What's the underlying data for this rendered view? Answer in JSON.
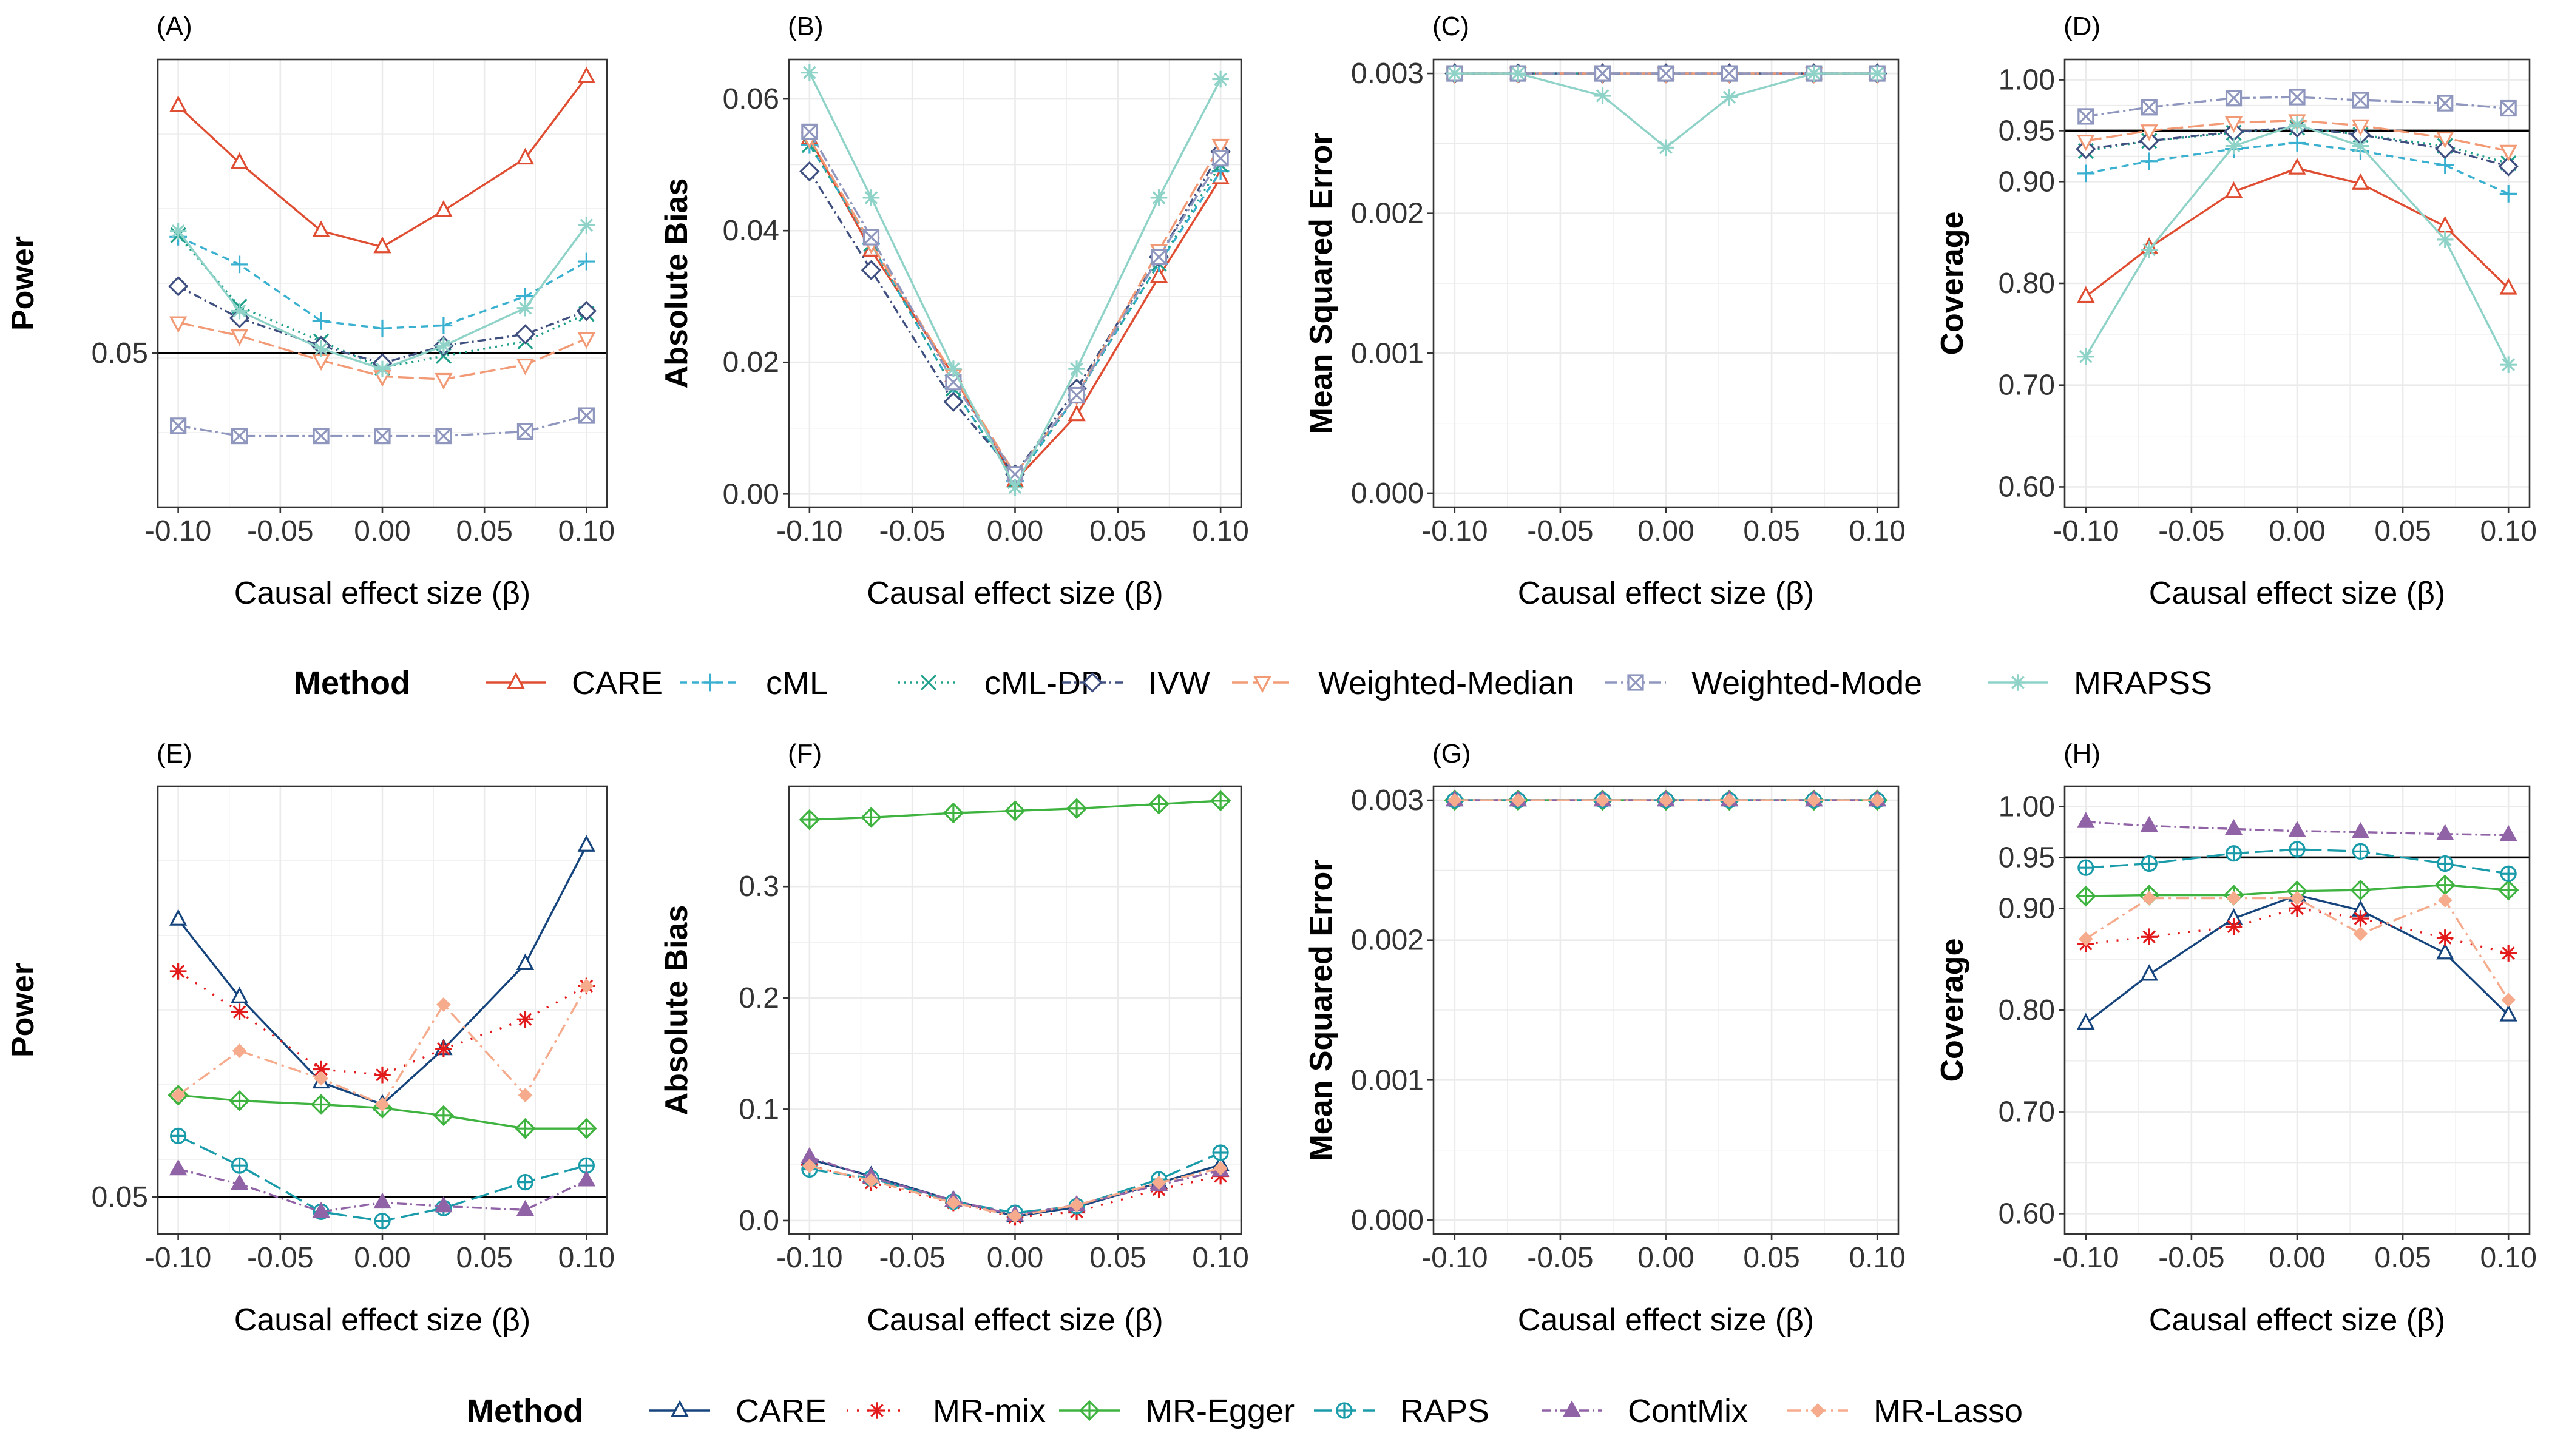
{
  "colors": {
    "CARE_top": "#DF4E32",
    "cML": "#3AB0D0",
    "cML-DP": "#1FA08A",
    "IVW": "#3F4F7F",
    "Weighted-Median": "#F29A75",
    "Weighted-Mode": "#8F97BE",
    "MRAPSS": "#8FD3C8",
    "CARE_bottom": "#16457E",
    "MR-mix": "#E31A1C",
    "MR-Egger": "#3FB33F",
    "RAPS": "#1A9BAA",
    "ContMix": "#9062A6",
    "MR-Lasso": "#F5AB8C"
  },
  "legends": [
    {
      "title": "Method",
      "entries": [
        {
          "label": "CARE",
          "key": "CARE_top",
          "shape": "triangle",
          "dash": ""
        },
        {
          "label": "cML",
          "key": "cML",
          "shape": "plus",
          "dash": "12,8"
        },
        {
          "label": "cML-DP",
          "key": "cML-DP",
          "shape": "cross",
          "dash": "3,7"
        },
        {
          "label": "IVW",
          "key": "IVW",
          "shape": "diamond",
          "dash": "14,6,3,6"
        },
        {
          "label": "Weighted-Median",
          "key": "Weighted-Median",
          "shape": "triangle-down",
          "dash": "26,8"
        },
        {
          "label": "Weighted-Mode",
          "key": "Weighted-Mode",
          "shape": "square-x",
          "dash": "20,6,4,6"
        },
        {
          "label": "MRAPSS",
          "key": "MRAPSS",
          "shape": "asterisk",
          "dash": ""
        }
      ]
    },
    {
      "title": "Method",
      "entries": [
        {
          "label": "CARE",
          "key": "CARE_bottom",
          "shape": "triangle",
          "dash": ""
        },
        {
          "label": "MR-mix",
          "key": "MR-mix",
          "shape": "asterisk",
          "dash": "3,14"
        },
        {
          "label": "MR-Egger",
          "key": "MR-Egger",
          "shape": "diamond-plus",
          "dash": ""
        },
        {
          "label": "RAPS",
          "key": "RAPS",
          "shape": "circle-plus",
          "dash": "30,10"
        },
        {
          "label": "ContMix",
          "key": "ContMix",
          "shape": "triangle-filled",
          "dash": "16,6,3,6"
        },
        {
          "label": "MR-Lasso",
          "key": "MR-Lasso",
          "shape": "diamond-filled",
          "dash": "22,8,4,8"
        }
      ]
    }
  ],
  "chart_data": [
    {
      "tag": "(A)",
      "type": "line",
      "ylabel": "Power",
      "xlabel": "Causal effect size (β)",
      "x": [
        -0.1,
        -0.07,
        -0.03,
        0,
        0.03,
        0.07,
        0.1
      ],
      "xlim": [
        -0.11,
        0.11
      ],
      "xticks": [
        "-0.10",
        "-0.05",
        "0.00",
        "0.05",
        "0.10"
      ],
      "ylim": [
        -0.056,
        0.252
      ],
      "yticks": [
        {
          "v": 0.05,
          "label": "0.05"
        }
      ],
      "hline": 0.05,
      "series": [
        {
          "name": "CARE",
          "values": [
            0.22,
            0.181,
            0.134,
            0.123,
            0.148,
            0.184,
            0.24
          ]
        },
        {
          "name": "cML",
          "values": [
            0.13,
            0.111,
            0.072,
            0.067,
            0.069,
            0.089,
            0.113
          ]
        },
        {
          "name": "cML-DP",
          "values": [
            0.131,
            0.082,
            0.058,
            0.04,
            0.048,
            0.058,
            0.077
          ]
        },
        {
          "name": "IVW",
          "values": [
            0.096,
            0.074,
            0.055,
            0.043,
            0.055,
            0.063,
            0.079
          ]
        },
        {
          "name": "Weighted-Median",
          "values": [
            0.071,
            0.062,
            0.045,
            0.034,
            0.032,
            0.042,
            0.06
          ]
        },
        {
          "name": "Weighted-Mode",
          "values": [
            0.0,
            -0.007,
            -0.007,
            -0.007,
            -0.007,
            -0.004,
            0.007
          ]
        },
        {
          "name": "MRAPSS",
          "values": [
            0.134,
            0.079,
            0.053,
            0.039,
            0.055,
            0.081,
            0.138
          ]
        }
      ]
    },
    {
      "tag": "(B)",
      "type": "line",
      "ylabel": "Absolute Bias",
      "xlabel": "Causal effect size (β)",
      "x": [
        -0.1,
        -0.07,
        -0.03,
        0,
        0.03,
        0.07,
        0.1
      ],
      "xlim": [
        -0.11,
        0.11
      ],
      "xticks": [
        "-0.10",
        "-0.05",
        "0.00",
        "0.05",
        "0.10"
      ],
      "ylim": [
        -0.002,
        0.066
      ],
      "yticks": [
        {
          "v": 0,
          "label": "0.00"
        },
        {
          "v": 0.02,
          "label": "0.02"
        },
        {
          "v": 0.04,
          "label": "0.04"
        },
        {
          "v": 0.06,
          "label": "0.06"
        }
      ],
      "series": [
        {
          "name": "CARE",
          "values": [
            0.054,
            0.037,
            0.018,
            0.002,
            0.012,
            0.033,
            0.048
          ]
        },
        {
          "name": "cML",
          "values": [
            0.053,
            0.038,
            0.016,
            0.002,
            0.015,
            0.035,
            0.049
          ]
        },
        {
          "name": "cML-DP",
          "values": [
            0.053,
            0.038,
            0.016,
            0.002,
            0.015,
            0.035,
            0.05
          ]
        },
        {
          "name": "IVW",
          "values": [
            0.049,
            0.034,
            0.014,
            0.003,
            0.016,
            0.036,
            0.052
          ]
        },
        {
          "name": "Weighted-Median",
          "values": [
            0.054,
            0.038,
            0.018,
            0.003,
            0.015,
            0.037,
            0.053
          ]
        },
        {
          "name": "Weighted-Mode",
          "values": [
            0.055,
            0.039,
            0.017,
            0.003,
            0.015,
            0.036,
            0.051
          ]
        },
        {
          "name": "MRAPSS",
          "values": [
            0.064,
            0.045,
            0.019,
            0.001,
            0.019,
            0.045,
            0.063
          ]
        }
      ]
    },
    {
      "tag": "(C)",
      "type": "line",
      "ylabel": "Mean Squared Error",
      "xlabel": "Causal effect size (β)",
      "x": [
        -0.1,
        -0.07,
        -0.03,
        0,
        0.03,
        0.07,
        0.1
      ],
      "xlim": [
        -0.11,
        0.11
      ],
      "xticks": [
        "-0.10",
        "-0.05",
        "0.00",
        "0.05",
        "0.10"
      ],
      "ylim": [
        -0.0001,
        0.0031
      ],
      "yticks": [
        {
          "v": 0,
          "label": "0.000"
        },
        {
          "v": 0.001,
          "label": "0.001"
        },
        {
          "v": 0.002,
          "label": "0.002"
        },
        {
          "v": 0.003,
          "label": "0.003"
        }
      ],
      "series": [
        {
          "name": "CARE",
          "values": [
            0.003,
            0.003,
            0.003,
            0.003,
            0.003,
            0.003,
            0.003
          ]
        },
        {
          "name": "cML",
          "values": [
            0.003,
            0.003,
            0.003,
            0.003,
            0.003,
            0.003,
            0.003
          ]
        },
        {
          "name": "cML-DP",
          "values": [
            0.003,
            0.003,
            0.003,
            0.003,
            0.003,
            0.003,
            0.003
          ]
        },
        {
          "name": "IVW",
          "values": [
            0.003,
            0.003,
            0.003,
            0.003,
            0.003,
            0.003,
            0.003
          ]
        },
        {
          "name": "Weighted-Median",
          "values": [
            0.003,
            0.003,
            0.003,
            0.003,
            0.003,
            0.003,
            0.003
          ]
        },
        {
          "name": "Weighted-Mode",
          "values": [
            0.003,
            0.003,
            0.003,
            0.003,
            0.003,
            0.003,
            0.003
          ]
        },
        {
          "name": "MRAPSS",
          "values": [
            0.003,
            0.003,
            0.00284,
            0.00247,
            0.00283,
            0.003,
            0.003
          ]
        }
      ]
    },
    {
      "tag": "(D)",
      "type": "line",
      "ylabel": "Coverage",
      "xlabel": "Causal effect size (β)",
      "x": [
        -0.1,
        -0.07,
        -0.03,
        0,
        0.03,
        0.07,
        0.1
      ],
      "xlim": [
        -0.11,
        0.11
      ],
      "xticks": [
        "-0.10",
        "-0.05",
        "0.00",
        "0.05",
        "0.10"
      ],
      "ylim": [
        0.58,
        1.02
      ],
      "yticks": [
        {
          "v": 0.6,
          "label": "0.60"
        },
        {
          "v": 0.7,
          "label": "0.70"
        },
        {
          "v": 0.8,
          "label": "0.80"
        },
        {
          "v": 0.9,
          "label": "0.90"
        },
        {
          "v": 0.95,
          "label": "0.95"
        },
        {
          "v": 1.0,
          "label": "1.00"
        }
      ],
      "hline": 0.95,
      "series": [
        {
          "name": "CARE",
          "values": [
            0.787,
            0.835,
            0.89,
            0.913,
            0.898,
            0.856,
            0.795
          ]
        },
        {
          "name": "cML",
          "values": [
            0.908,
            0.92,
            0.932,
            0.938,
            0.93,
            0.916,
            0.888
          ]
        },
        {
          "name": "cML-DP",
          "values": [
            0.93,
            0.94,
            0.948,
            0.953,
            0.946,
            0.935,
            0.918
          ]
        },
        {
          "name": "IVW",
          "values": [
            0.932,
            0.94,
            0.949,
            0.953,
            0.946,
            0.932,
            0.915
          ]
        },
        {
          "name": "Weighted-Median",
          "values": [
            0.94,
            0.95,
            0.958,
            0.96,
            0.955,
            0.943,
            0.93
          ]
        },
        {
          "name": "Weighted-Mode",
          "values": [
            0.964,
            0.973,
            0.982,
            0.983,
            0.98,
            0.977,
            0.972
          ]
        },
        {
          "name": "MRAPSS",
          "values": [
            0.728,
            0.833,
            0.935,
            0.956,
            0.935,
            0.843,
            0.72
          ]
        }
      ]
    },
    {
      "tag": "(E)",
      "type": "line",
      "ylabel": "Power",
      "xlabel": "Causal effect size (β)",
      "x": [
        -0.1,
        -0.07,
        -0.03,
        0,
        0.03,
        0.07,
        0.1
      ],
      "xlim": [
        -0.11,
        0.11
      ],
      "xticks": [
        "-0.10",
        "-0.05",
        "0.00",
        "0.05",
        "0.10"
      ],
      "ylim": [
        0.03,
        0.272
      ],
      "yticks": [
        {
          "v": 0.05,
          "label": "0.05"
        }
      ],
      "hline": 0.05,
      "series": [
        {
          "name": "CARE",
          "values": [
            0.2,
            0.158,
            0.112,
            0.1,
            0.13,
            0.176,
            0.24
          ]
        },
        {
          "name": "MR-mix",
          "values": [
            0.172,
            0.15,
            0.119,
            0.116,
            0.13,
            0.146,
            0.164
          ]
        },
        {
          "name": "MR-Egger",
          "values": [
            0.105,
            0.102,
            0.1,
            0.098,
            0.094,
            0.087,
            0.087
          ]
        },
        {
          "name": "RAPS",
          "values": [
            0.083,
            0.067,
            0.042,
            0.037,
            0.044,
            0.058,
            0.067
          ]
        },
        {
          "name": "ContMix",
          "values": [
            0.065,
            0.057,
            0.042,
            0.047,
            0.045,
            0.043,
            0.059
          ]
        },
        {
          "name": "MR-Lasso",
          "values": [
            0.105,
            0.129,
            0.114,
            0.1,
            0.154,
            0.105,
            0.164
          ]
        }
      ]
    },
    {
      "tag": "(F)",
      "type": "line",
      "ylabel": "Absolute Bias",
      "xlabel": "Causal effect size (β)",
      "x": [
        -0.1,
        -0.07,
        -0.03,
        0,
        0.03,
        0.07,
        0.1
      ],
      "xlim": [
        -0.11,
        0.11
      ],
      "xticks": [
        "-0.10",
        "-0.05",
        "0.00",
        "0.05",
        "0.10"
      ],
      "ylim": [
        -0.012,
        0.39
      ],
      "yticks": [
        {
          "v": 0,
          "label": "0.0"
        },
        {
          "v": 0.1,
          "label": "0.1"
        },
        {
          "v": 0.2,
          "label": "0.2"
        },
        {
          "v": 0.3,
          "label": "0.3"
        }
      ],
      "series": [
        {
          "name": "CARE",
          "values": [
            0.055,
            0.04,
            0.018,
            0.004,
            0.012,
            0.034,
            0.05
          ]
        },
        {
          "name": "MR-mix",
          "values": [
            0.05,
            0.034,
            0.016,
            0.003,
            0.008,
            0.028,
            0.04
          ]
        },
        {
          "name": "MR-Egger",
          "values": [
            0.36,
            0.362,
            0.366,
            0.368,
            0.37,
            0.374,
            0.377
          ]
        },
        {
          "name": "RAPS",
          "values": [
            0.046,
            0.038,
            0.017,
            0.007,
            0.013,
            0.037,
            0.061
          ]
        },
        {
          "name": "ContMix",
          "values": [
            0.057,
            0.039,
            0.018,
            0.005,
            0.014,
            0.032,
            0.045
          ]
        },
        {
          "name": "MR-Lasso",
          "values": [
            0.049,
            0.036,
            0.016,
            0.004,
            0.014,
            0.034,
            0.047
          ]
        }
      ]
    },
    {
      "tag": "(G)",
      "type": "line",
      "ylabel": "Mean Squared Error",
      "xlabel": "Causal effect size (β)",
      "x": [
        -0.1,
        -0.07,
        -0.03,
        0,
        0.03,
        0.07,
        0.1
      ],
      "xlim": [
        -0.11,
        0.11
      ],
      "xticks": [
        "-0.10",
        "-0.05",
        "0.00",
        "0.05",
        "0.10"
      ],
      "ylim": [
        -0.0001,
        0.0031
      ],
      "yticks": [
        {
          "v": 0,
          "label": "0.000"
        },
        {
          "v": 0.001,
          "label": "0.001"
        },
        {
          "v": 0.002,
          "label": "0.002"
        },
        {
          "v": 0.003,
          "label": "0.003"
        }
      ],
      "series": [
        {
          "name": "CARE",
          "values": [
            0.003,
            0.003,
            0.003,
            0.003,
            0.003,
            0.003,
            0.003
          ]
        },
        {
          "name": "MR-mix",
          "values": [
            0.003,
            0.003,
            0.003,
            0.003,
            0.003,
            0.003,
            0.003
          ]
        },
        {
          "name": "MR-Egger",
          "values": [
            0.003,
            0.003,
            0.003,
            0.003,
            0.003,
            0.003,
            0.003
          ]
        },
        {
          "name": "RAPS",
          "values": [
            0.003,
            0.003,
            0.003,
            0.003,
            0.003,
            0.003,
            0.003
          ]
        },
        {
          "name": "ContMix",
          "values": [
            0.003,
            0.003,
            0.003,
            0.003,
            0.003,
            0.003,
            0.003
          ]
        },
        {
          "name": "MR-Lasso",
          "values": [
            0.003,
            0.003,
            0.003,
            0.003,
            0.003,
            0.003,
            0.003
          ]
        }
      ]
    },
    {
      "tag": "(H)",
      "type": "line",
      "ylabel": "Coverage",
      "xlabel": "Causal effect size (β)",
      "x": [
        -0.1,
        -0.07,
        -0.03,
        0,
        0.03,
        0.07,
        0.1
      ],
      "xlim": [
        -0.11,
        0.11
      ],
      "xticks": [
        "-0.10",
        "-0.05",
        "0.00",
        "0.05",
        "0.10"
      ],
      "ylim": [
        0.58,
        1.02
      ],
      "yticks": [
        {
          "v": 0.6,
          "label": "0.60"
        },
        {
          "v": 0.7,
          "label": "0.70"
        },
        {
          "v": 0.8,
          "label": "0.80"
        },
        {
          "v": 0.9,
          "label": "0.90"
        },
        {
          "v": 0.95,
          "label": "0.95"
        },
        {
          "v": 1.0,
          "label": "1.00"
        }
      ],
      "hline": 0.95,
      "series": [
        {
          "name": "CARE",
          "values": [
            0.787,
            0.835,
            0.89,
            0.913,
            0.898,
            0.856,
            0.795
          ]
        },
        {
          "name": "MR-mix",
          "values": [
            0.865,
            0.872,
            0.882,
            0.9,
            0.89,
            0.871,
            0.856
          ]
        },
        {
          "name": "MR-Egger",
          "values": [
            0.912,
            0.913,
            0.913,
            0.917,
            0.918,
            0.923,
            0.918
          ]
        },
        {
          "name": "RAPS",
          "values": [
            0.94,
            0.944,
            0.954,
            0.958,
            0.956,
            0.944,
            0.934
          ]
        },
        {
          "name": "ContMix",
          "values": [
            0.985,
            0.981,
            0.978,
            0.976,
            0.975,
            0.973,
            0.972
          ]
        },
        {
          "name": "MR-Lasso",
          "values": [
            0.87,
            0.91,
            0.91,
            0.91,
            0.875,
            0.908,
            0.81
          ]
        }
      ]
    }
  ]
}
